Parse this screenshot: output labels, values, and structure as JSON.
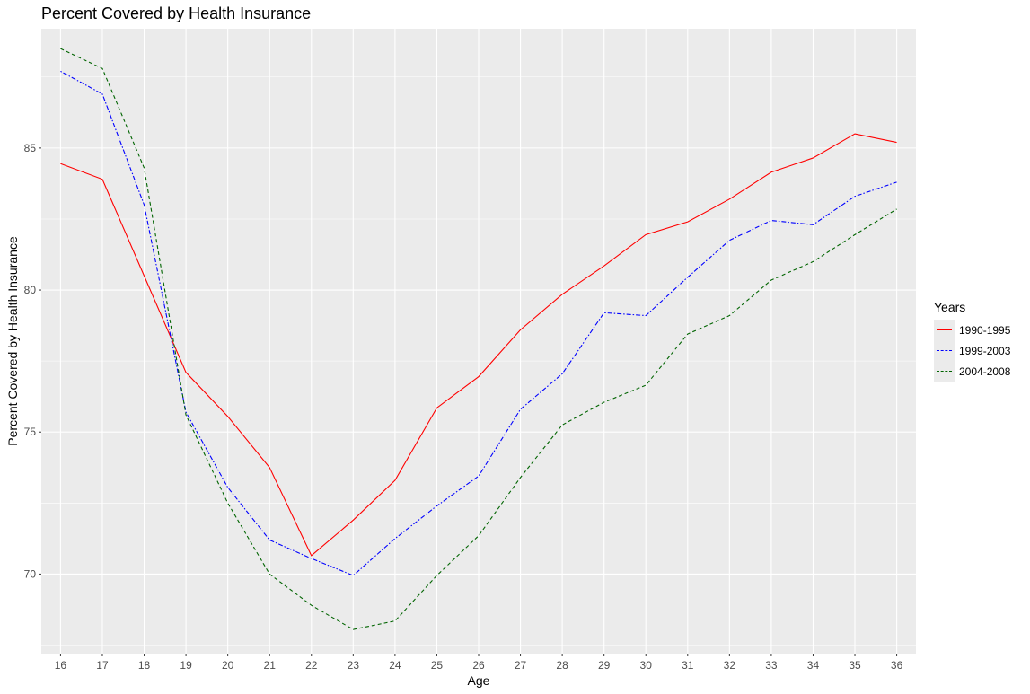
{
  "chart_data": {
    "type": "line",
    "title": "Percent Covered by Health Insurance",
    "xlabel": "Age",
    "ylabel": "Percent Covered by Health Insurance",
    "x": [
      16,
      17,
      18,
      19,
      20,
      21,
      22,
      23,
      24,
      25,
      26,
      27,
      28,
      29,
      30,
      31,
      32,
      33,
      34,
      35,
      36
    ],
    "xlim": [
      15.54,
      36.46
    ],
    "ylim": [
      67.2,
      89.2
    ],
    "yticks": [
      70,
      75,
      80,
      85
    ],
    "grid": true,
    "legend": {
      "title": "Years",
      "position": "right"
    },
    "series": [
      {
        "name": "1990-1995",
        "color": "#ff0000",
        "dash": "solid",
        "values": [
          84.45,
          83.9,
          80.5,
          77.1,
          75.55,
          73.75,
          70.65,
          71.9,
          73.3,
          75.85,
          76.95,
          78.6,
          79.85,
          80.85,
          81.95,
          82.4,
          83.2,
          84.15,
          84.65,
          85.5,
          85.2
        ]
      },
      {
        "name": "1999-2003",
        "color": "#0000ff",
        "dash": "dashdot",
        "values": [
          87.7,
          86.9,
          83.0,
          75.7,
          73.05,
          71.2,
          70.55,
          69.95,
          71.25,
          72.4,
          73.45,
          75.8,
          77.05,
          79.2,
          79.1,
          80.45,
          81.75,
          82.45,
          82.3,
          83.3,
          83.8
        ]
      },
      {
        "name": "2004-2008",
        "color": "#006400",
        "dash": "dashed",
        "values": [
          88.5,
          87.8,
          84.3,
          75.6,
          72.5,
          70.0,
          68.9,
          68.05,
          68.35,
          69.95,
          71.35,
          73.4,
          75.25,
          76.05,
          76.65,
          78.45,
          79.1,
          80.35,
          81.0,
          81.95,
          82.85
        ]
      }
    ]
  }
}
